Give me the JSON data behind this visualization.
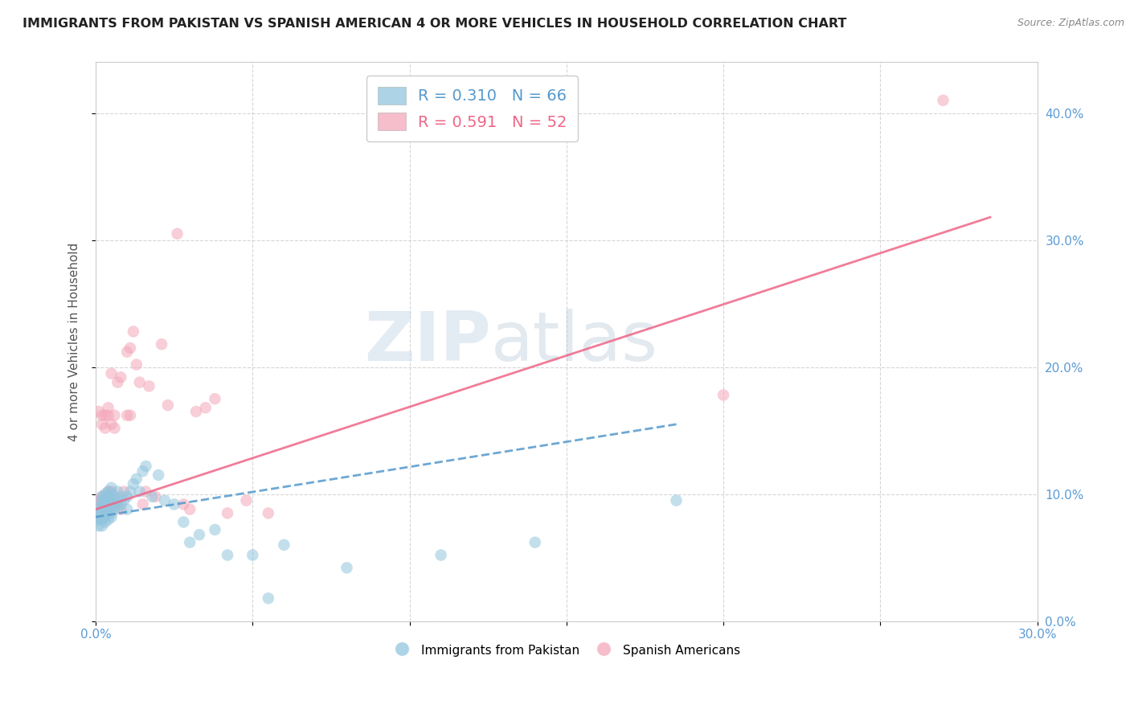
{
  "title": "IMMIGRANTS FROM PAKISTAN VS SPANISH AMERICAN 4 OR MORE VEHICLES IN HOUSEHOLD CORRELATION CHART",
  "source": "Source: ZipAtlas.com",
  "ylabel": "4 or more Vehicles in Household",
  "xlim": [
    0.0,
    0.3
  ],
  "ylim": [
    0.0,
    0.44
  ],
  "xticks": [
    0.0,
    0.05,
    0.1,
    0.15,
    0.2,
    0.25,
    0.3
  ],
  "yticks": [
    0.0,
    0.1,
    0.2,
    0.3,
    0.4
  ],
  "blue_R": 0.31,
  "blue_N": 66,
  "pink_R": 0.591,
  "pink_N": 52,
  "blue_color": "#92c5de",
  "pink_color": "#f4a7b9",
  "blue_line_color": "#5599cc",
  "pink_line_color": "#ee6688",
  "watermark_zip": "ZIP",
  "watermark_atlas": "atlas",
  "legend_label_blue": "Immigrants from Pakistan",
  "legend_label_pink": "Spanish Americans",
  "blue_points_x": [
    0.001,
    0.001,
    0.001,
    0.001,
    0.001,
    0.002,
    0.002,
    0.002,
    0.002,
    0.002,
    0.002,
    0.002,
    0.002,
    0.003,
    0.003,
    0.003,
    0.003,
    0.003,
    0.003,
    0.003,
    0.003,
    0.004,
    0.004,
    0.004,
    0.004,
    0.004,
    0.004,
    0.005,
    0.005,
    0.005,
    0.005,
    0.005,
    0.005,
    0.006,
    0.006,
    0.006,
    0.007,
    0.007,
    0.007,
    0.008,
    0.008,
    0.009,
    0.01,
    0.01,
    0.011,
    0.012,
    0.013,
    0.014,
    0.015,
    0.016,
    0.018,
    0.02,
    0.022,
    0.025,
    0.028,
    0.03,
    0.033,
    0.038,
    0.042,
    0.05,
    0.055,
    0.06,
    0.08,
    0.11,
    0.14,
    0.185
  ],
  "blue_points_y": [
    0.075,
    0.08,
    0.082,
    0.085,
    0.09,
    0.075,
    0.08,
    0.082,
    0.085,
    0.088,
    0.092,
    0.095,
    0.098,
    0.078,
    0.082,
    0.085,
    0.09,
    0.092,
    0.095,
    0.098,
    0.1,
    0.08,
    0.085,
    0.09,
    0.095,
    0.098,
    0.102,
    0.082,
    0.085,
    0.09,
    0.095,
    0.1,
    0.105,
    0.088,
    0.092,
    0.098,
    0.09,
    0.095,
    0.102,
    0.092,
    0.098,
    0.095,
    0.088,
    0.098,
    0.102,
    0.108,
    0.112,
    0.102,
    0.118,
    0.122,
    0.098,
    0.115,
    0.095,
    0.092,
    0.078,
    0.062,
    0.068,
    0.072,
    0.052,
    0.052,
    0.018,
    0.06,
    0.042,
    0.052,
    0.062,
    0.095
  ],
  "pink_points_x": [
    0.001,
    0.001,
    0.001,
    0.002,
    0.002,
    0.002,
    0.002,
    0.002,
    0.003,
    0.003,
    0.003,
    0.003,
    0.004,
    0.004,
    0.004,
    0.004,
    0.005,
    0.005,
    0.005,
    0.005,
    0.006,
    0.006,
    0.006,
    0.007,
    0.007,
    0.008,
    0.008,
    0.009,
    0.01,
    0.01,
    0.011,
    0.011,
    0.012,
    0.013,
    0.014,
    0.015,
    0.016,
    0.017,
    0.019,
    0.021,
    0.023,
    0.026,
    0.028,
    0.03,
    0.032,
    0.035,
    0.038,
    0.042,
    0.048,
    0.055,
    0.2,
    0.27
  ],
  "pink_points_y": [
    0.092,
    0.095,
    0.165,
    0.082,
    0.092,
    0.098,
    0.155,
    0.162,
    0.092,
    0.095,
    0.152,
    0.162,
    0.088,
    0.102,
    0.162,
    0.168,
    0.092,
    0.102,
    0.155,
    0.195,
    0.092,
    0.152,
    0.162,
    0.092,
    0.188,
    0.088,
    0.192,
    0.102,
    0.162,
    0.212,
    0.162,
    0.215,
    0.228,
    0.202,
    0.188,
    0.092,
    0.102,
    0.185,
    0.098,
    0.218,
    0.17,
    0.305,
    0.092,
    0.088,
    0.165,
    0.168,
    0.175,
    0.085,
    0.095,
    0.085,
    0.178,
    0.41
  ],
  "blue_line_x": [
    0.0,
    0.185
  ],
  "blue_line_y": [
    0.082,
    0.155
  ],
  "pink_line_x": [
    0.0,
    0.285
  ],
  "pink_line_y": [
    0.088,
    0.318
  ]
}
